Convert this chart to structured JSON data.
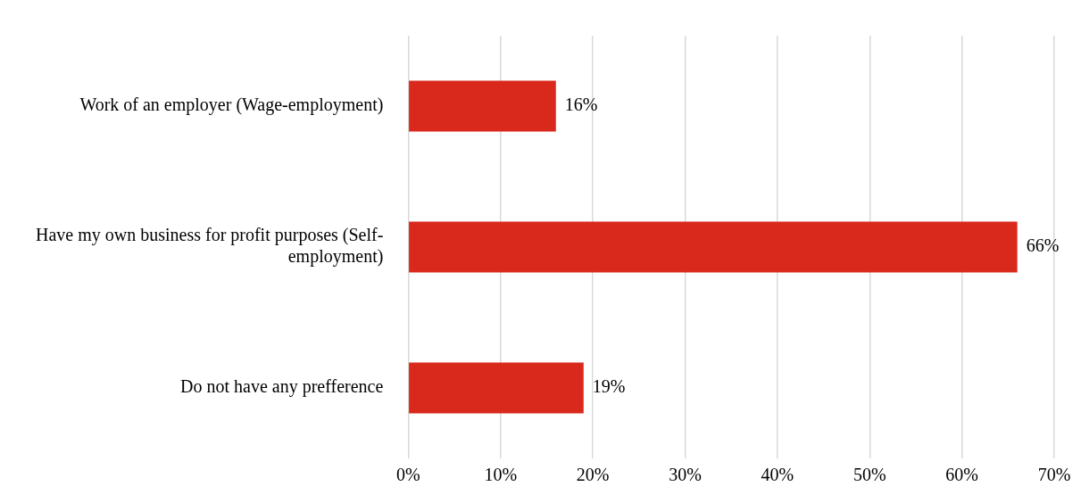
{
  "chart_data": {
    "type": "bar",
    "orientation": "horizontal",
    "categories": [
      "Work of an employer (Wage-employment)",
      "Have my own business for profit purposes (Self-employment)",
      "Do not have any prefference"
    ],
    "values": [
      16,
      66,
      19
    ],
    "value_labels": [
      "16%",
      "66%",
      "19%"
    ],
    "color": "#d9291c",
    "xlim": [
      0,
      70
    ],
    "xticks": [
      {
        "value": 0,
        "label": "0%"
      },
      {
        "value": 10,
        "label": "10%"
      },
      {
        "value": 20,
        "label": "20%"
      },
      {
        "value": 30,
        "label": "30%"
      },
      {
        "value": 40,
        "label": "40%"
      },
      {
        "value": 50,
        "label": "50%"
      },
      {
        "value": 60,
        "label": "60%"
      },
      {
        "value": 70,
        "label": "70%"
      }
    ],
    "grid": "x",
    "legend": false
  }
}
